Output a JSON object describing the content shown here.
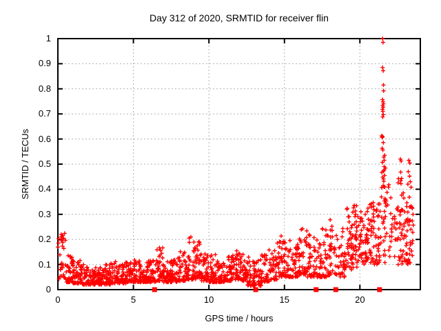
{
  "colors": {
    "marker": "#ff0000",
    "grid": "#b0b0b0",
    "axis": "#000000",
    "text": "#000000",
    "background": "#ffffff"
  },
  "chart_data": {
    "type": "scatter",
    "title": "Day 312 of 2020, SRMTID for receiver flin",
    "xlabel": "GPS time / hours",
    "ylabel": "SRMTID / TECUs",
    "xlim": [
      0,
      24
    ],
    "ylim": [
      0,
      1
    ],
    "x_ticks": [
      0,
      5,
      10,
      15,
      20
    ],
    "y_ticks": [
      0,
      0.1,
      0.2,
      0.3,
      0.4,
      0.5,
      0.6,
      0.7,
      0.8,
      0.9,
      1
    ],
    "grid": true,
    "grid_style": "dotted",
    "legend": "none",
    "marker": "plus",
    "marker_size_px": 7,
    "series": [
      {
        "name": "srmtid-density-cloud",
        "render": "generated_density",
        "seed": 12345,
        "bin_format": [
          "x_start",
          "x_end",
          "count",
          "y_min",
          "y_max",
          "distribution"
        ],
        "bins": [
          [
            0,
            0.5,
            30,
            0.04,
            0.23,
            "spread"
          ],
          [
            0.5,
            1,
            42,
            0.03,
            0.14,
            "low"
          ],
          [
            1,
            1.5,
            40,
            0.025,
            0.12,
            "low"
          ],
          [
            1.5,
            2,
            40,
            0.02,
            0.1,
            "low"
          ],
          [
            2,
            2.5,
            40,
            0.02,
            0.095,
            "low"
          ],
          [
            2.5,
            3,
            40,
            0.02,
            0.09,
            "low"
          ],
          [
            3,
            3.5,
            40,
            0.02,
            0.1,
            "low"
          ],
          [
            3.5,
            4,
            40,
            0.025,
            0.12,
            "low"
          ],
          [
            4,
            4.5,
            40,
            0.025,
            0.1,
            "low"
          ],
          [
            4.5,
            5,
            40,
            0.03,
            0.11,
            "low"
          ],
          [
            5,
            5.5,
            40,
            0.03,
            0.12,
            "low"
          ],
          [
            5.5,
            6,
            40,
            0.03,
            0.11,
            "low"
          ],
          [
            6,
            6.5,
            40,
            0.03,
            0.12,
            "low"
          ],
          [
            6.5,
            7,
            40,
            0.035,
            0.17,
            "low"
          ],
          [
            7,
            7.5,
            40,
            0.03,
            0.12,
            "low"
          ],
          [
            7.5,
            8,
            40,
            0.03,
            0.13,
            "low"
          ],
          [
            8,
            8.5,
            40,
            0.035,
            0.16,
            "low"
          ],
          [
            8.5,
            9,
            40,
            0.04,
            0.21,
            "low"
          ],
          [
            9,
            9.5,
            40,
            0.04,
            0.2,
            "low"
          ],
          [
            9.5,
            10,
            40,
            0.035,
            0.15,
            "low"
          ],
          [
            10,
            10.5,
            40,
            0.03,
            0.14,
            "low"
          ],
          [
            10.5,
            11,
            40,
            0.03,
            0.12,
            "low"
          ],
          [
            11,
            11.5,
            40,
            0.035,
            0.14,
            "low"
          ],
          [
            11.5,
            12,
            40,
            0.04,
            0.16,
            "low"
          ],
          [
            12,
            12.5,
            40,
            0.035,
            0.15,
            "low"
          ],
          [
            12.5,
            13,
            40,
            0.015,
            0.13,
            "low"
          ],
          [
            13,
            13.5,
            36,
            0.015,
            0.12,
            "low"
          ],
          [
            13.5,
            14,
            36,
            0.03,
            0.17,
            "low"
          ],
          [
            14,
            14.5,
            36,
            0.04,
            0.16,
            "low"
          ],
          [
            14.5,
            15,
            36,
            0.05,
            0.22,
            "low"
          ],
          [
            15,
            15.5,
            36,
            0.05,
            0.2,
            "low"
          ],
          [
            15.5,
            16,
            36,
            0.05,
            0.19,
            "low"
          ],
          [
            16,
            16.5,
            36,
            0.06,
            0.25,
            "low"
          ],
          [
            16.5,
            17,
            36,
            0.05,
            0.22,
            "low"
          ],
          [
            17,
            17.5,
            32,
            0.05,
            0.2,
            "low"
          ],
          [
            17.5,
            18,
            30,
            0.05,
            0.26,
            "low"
          ],
          [
            18,
            18.5,
            30,
            0.06,
            0.28,
            "low"
          ],
          [
            18.5,
            19,
            30,
            0.05,
            0.26,
            "low"
          ],
          [
            19,
            19.5,
            36,
            0.08,
            0.33,
            "mid"
          ],
          [
            19.5,
            20,
            42,
            0.08,
            0.35,
            "mid"
          ],
          [
            20,
            20.5,
            42,
            0.1,
            0.34,
            "mid"
          ],
          [
            20.5,
            21,
            42,
            0.1,
            0.35,
            "mid"
          ],
          [
            21,
            21.35,
            26,
            0.1,
            0.35,
            "mid"
          ],
          [
            21.35,
            21.7,
            30,
            0.1,
            0.55,
            "spread"
          ],
          [
            21.7,
            22.1,
            16,
            0.12,
            0.42,
            "spread"
          ],
          [
            22.1,
            22.5,
            16,
            0.1,
            0.35,
            "spread"
          ],
          [
            22.5,
            22.9,
            30,
            0.1,
            0.45,
            "mid"
          ],
          [
            22.9,
            23.35,
            42,
            0.1,
            0.42,
            "mid"
          ],
          [
            23.35,
            23.55,
            12,
            0.12,
            0.35,
            "spread"
          ]
        ]
      },
      {
        "name": "srmtid-peak-outliers",
        "render": "points",
        "points": [
          [
            21.5,
            1.0
          ],
          [
            21.53,
            0.985
          ],
          [
            21.5,
            0.885
          ],
          [
            21.54,
            0.872
          ],
          [
            21.56,
            0.815
          ],
          [
            21.57,
            0.792
          ],
          [
            21.5,
            0.757
          ],
          [
            21.53,
            0.748
          ],
          [
            21.56,
            0.74
          ],
          [
            21.51,
            0.733
          ],
          [
            21.54,
            0.727
          ],
          [
            21.49,
            0.718
          ],
          [
            21.52,
            0.71
          ],
          [
            21.55,
            0.697
          ],
          [
            21.51,
            0.688
          ],
          [
            21.44,
            0.613
          ],
          [
            21.5,
            0.61
          ],
          [
            21.47,
            0.606
          ],
          [
            21.55,
            0.586
          ],
          [
            21.47,
            0.563
          ],
          [
            21.52,
            0.556
          ],
          [
            21.58,
            0.528
          ],
          [
            21.49,
            0.507
          ],
          [
            21.61,
            0.49
          ],
          [
            21.55,
            0.472
          ],
          [
            21.63,
            0.455
          ],
          [
            21.58,
            0.432
          ],
          [
            21.65,
            0.41
          ],
          [
            22.68,
            0.52
          ],
          [
            22.73,
            0.512
          ],
          [
            22.7,
            0.468
          ],
          [
            22.76,
            0.443
          ],
          [
            22.72,
            0.422
          ],
          [
            23.24,
            0.515
          ],
          [
            23.3,
            0.504
          ],
          [
            23.2,
            0.47
          ],
          [
            23.29,
            0.452
          ],
          [
            23.34,
            0.43
          ],
          [
            23.39,
            0.408
          ]
        ]
      },
      {
        "name": "baseline-square-markers",
        "render": "squares",
        "marker": "filled_square",
        "y": 0,
        "x_values": [
          6.4,
          13.1,
          17.1,
          18.4,
          21.3
        ]
      }
    ]
  }
}
